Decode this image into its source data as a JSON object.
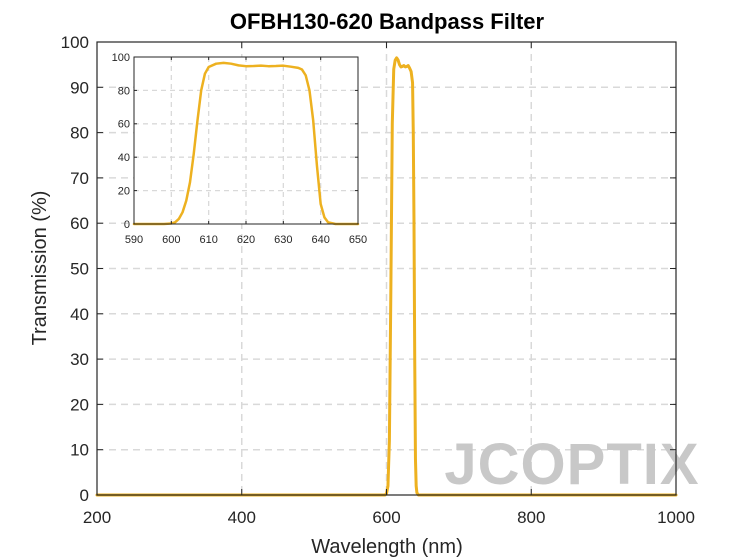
{
  "watermark": "JCOPTIX",
  "chart_data": [
    {
      "type": "line",
      "title": "OFBH130-620 Bandpass Filter",
      "xlabel": "Wavelength (nm)",
      "ylabel": "Transmission (%)",
      "xlim": [
        200,
        1000
      ],
      "ylim": [
        0,
        100
      ],
      "xticks": [
        200,
        400,
        600,
        800,
        1000
      ],
      "yticks": [
        0,
        10,
        20,
        30,
        40,
        50,
        60,
        70,
        80,
        90,
        100
      ],
      "grid": true,
      "color": "#EDB120",
      "series": [
        {
          "x": [
            200,
            590,
            598,
            600,
            602,
            604,
            606,
            608,
            610,
            612,
            614,
            616,
            618,
            620,
            622,
            624,
            626,
            628,
            630,
            632,
            634,
            636,
            637,
            638,
            639,
            640,
            641,
            642,
            644,
            1000
          ],
          "y": [
            0,
            0,
            0,
            0.3,
            2,
            12,
            45,
            82,
            94,
            96,
            96.5,
            96,
            95,
            94.5,
            94.6,
            94.8,
            94.5,
            94.6,
            94.8,
            94.2,
            93.5,
            91,
            80,
            60,
            30,
            8,
            2,
            0.5,
            0,
            0
          ]
        }
      ]
    },
    {
      "type": "line",
      "title": "",
      "xlabel": "",
      "ylabel": "",
      "xlim": [
        590,
        650
      ],
      "ylim": [
        0,
        100
      ],
      "xticks": [
        590,
        600,
        610,
        620,
        630,
        640,
        650
      ],
      "yticks": [
        0,
        20,
        40,
        60,
        80,
        100
      ],
      "grid": true,
      "color": "#EDB120",
      "series": [
        {
          "x": [
            590,
            598,
            600,
            601,
            602,
            603,
            604,
            605,
            606,
            607,
            608,
            609,
            610,
            612,
            614,
            616,
            618,
            620,
            622,
            624,
            626,
            628,
            630,
            632,
            634,
            635,
            636,
            637,
            638,
            639,
            640,
            641,
            642,
            644,
            650
          ],
          "y": [
            0,
            0,
            0.3,
            1,
            3,
            7,
            14,
            25,
            42,
            62,
            80,
            90,
            94,
            96,
            96.5,
            96,
            95,
            94.5,
            94.6,
            94.8,
            94.5,
            94.6,
            94.8,
            94.2,
            93.5,
            92.5,
            89,
            80,
            62,
            35,
            12,
            4,
            1,
            0,
            0
          ]
        }
      ]
    }
  ]
}
